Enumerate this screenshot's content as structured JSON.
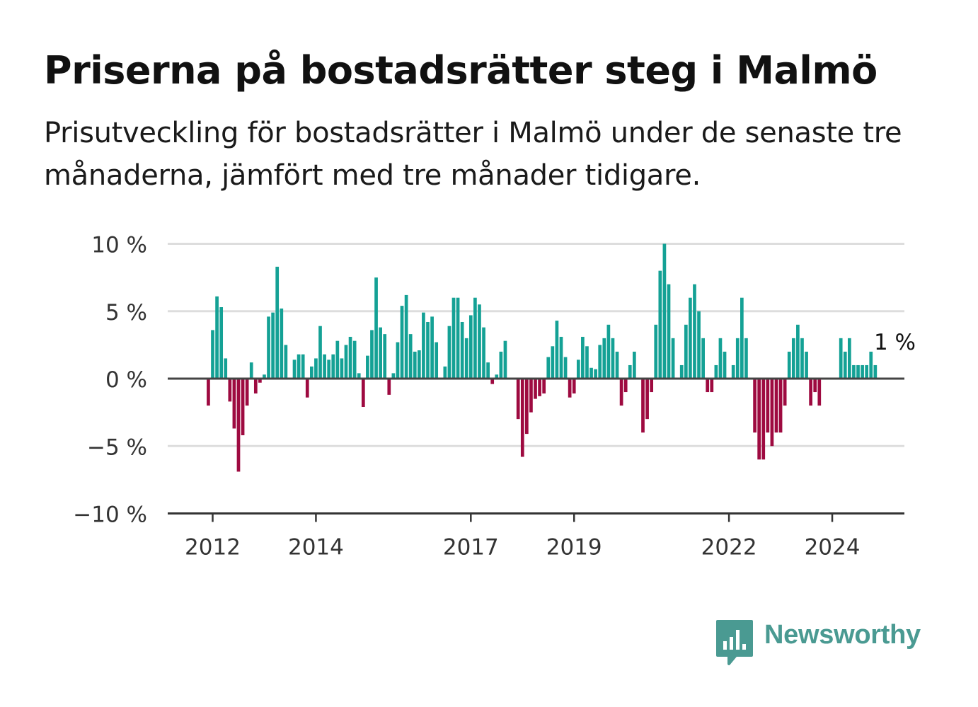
{
  "title": "Priserna på bostadsrätter steg i Malmö",
  "subtitle": "Prisutveckling för bostadsrätter i Malmö under de senaste tre månaderna, jämfört med tre månader tidigare.",
  "brand": "Newsworthy",
  "colors": {
    "positive": "#14a195",
    "negative": "#9e0a40",
    "brand": "#4a9a92"
  },
  "chart_data": {
    "type": "bar",
    "y_ticks": [
      10,
      5,
      0,
      -5,
      -10
    ],
    "y_tick_labels": [
      "10 %",
      "5 %",
      "0 %",
      "−5 %",
      "−10 %"
    ],
    "ylim": [
      -10,
      10
    ],
    "x_ticks": [
      "2012",
      "2014",
      "2017",
      "2019",
      "2022",
      "2024"
    ],
    "grid": true,
    "annotation": "1 %",
    "first_month": "2011-11",
    "values": [
      0,
      -2,
      3.6,
      6.1,
      5.3,
      1.5,
      -1.7,
      -3.7,
      -6.9,
      -4.2,
      -2,
      1.2,
      -1.1,
      -0.3,
      0.3,
      4.6,
      4.9,
      8.3,
      5.2,
      2.5,
      0,
      1.4,
      1.8,
      1.8,
      -1.4,
      0.9,
      1.5,
      3.9,
      1.8,
      1.4,
      1.8,
      2.8,
      1.5,
      2.5,
      3.1,
      2.8,
      0.4,
      -2.1,
      1.7,
      3.6,
      7.5,
      3.8,
      3.3,
      -1.2,
      0.4,
      2.7,
      5.4,
      6.2,
      3.3,
      2,
      2.1,
      4.9,
      4.2,
      4.6,
      2.7,
      0,
      0.9,
      3.9,
      6,
      6,
      4.2,
      3,
      4.7,
      6,
      5.5,
      3.8,
      1.2,
      -0.4,
      0.3,
      2,
      2.8,
      0,
      0,
      -3,
      -5.8,
      -4.1,
      -2.5,
      -1.5,
      -1.3,
      -1.1,
      1.6,
      2.4,
      4.3,
      3.1,
      1.6,
      -1.4,
      -1.1,
      1.4,
      3.1,
      2.4,
      0.8,
      0.7,
      2.5,
      3,
      4,
      3,
      2,
      -2,
      -1,
      1,
      2,
      0,
      -4,
      -3,
      -1,
      4,
      8,
      10,
      7,
      3,
      0,
      1,
      4,
      6,
      7,
      5,
      3,
      -1,
      -1,
      1,
      3,
      2,
      0,
      1,
      3,
      6,
      3,
      0,
      -4,
      -6,
      -6,
      -4,
      -5,
      -4,
      -4,
      -2,
      2,
      3,
      4,
      3,
      2,
      -2,
      -1,
      -2,
      0,
      0,
      0,
      0,
      3,
      2,
      3,
      1,
      1,
      1,
      1,
      2,
      1
    ]
  }
}
